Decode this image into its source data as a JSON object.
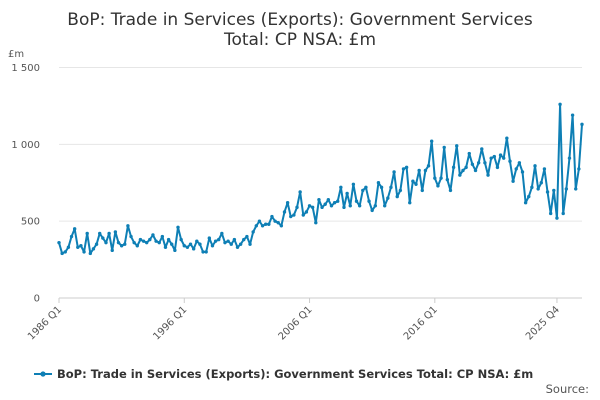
{
  "page": {
    "title_line1": "BoP: Trade in Services (Exports): Government Services",
    "title_line2": "Total: CP NSA: £m",
    "source_label": "Source:"
  },
  "colors": {
    "series": "#1f77b4",
    "series_line": "#0e7fb5",
    "grid": "#e6e6e6"
  },
  "chart_data": {
    "type": "line",
    "title": "BoP: Trade in Services (Exports): Government Services Total: CP NSA: £m",
    "ylabel": "£m",
    "ylim": [
      0,
      1500
    ],
    "yticks": [
      0,
      500,
      1000,
      1500
    ],
    "ytick_labels": [
      "0",
      "500",
      "1 000",
      "1 500"
    ],
    "x_start": "1986 Q1",
    "x_end": "2025 Q4",
    "xtick_labels": [
      "1986 Q1",
      "1996 Q1",
      "2006 Q1",
      "2016 Q1",
      "2025 Q4"
    ],
    "xtick_indices": [
      0,
      40,
      80,
      120,
      159
    ],
    "legend": "bottom",
    "grid": true,
    "series": [
      {
        "name": "BoP: Trade in Services (Exports): Government Services Total: CP NSA: £m",
        "values": [
          360,
          290,
          300,
          330,
          400,
          450,
          330,
          340,
          300,
          420,
          290,
          320,
          350,
          420,
          390,
          360,
          420,
          310,
          430,
          360,
          340,
          350,
          470,
          400,
          360,
          340,
          380,
          370,
          360,
          380,
          410,
          370,
          360,
          400,
          330,
          380,
          350,
          310,
          460,
          380,
          340,
          330,
          350,
          320,
          370,
          350,
          300,
          300,
          390,
          340,
          370,
          380,
          420,
          360,
          370,
          350,
          380,
          330,
          350,
          380,
          400,
          350,
          430,
          470,
          500,
          470,
          480,
          480,
          530,
          500,
          490,
          470,
          560,
          620,
          530,
          540,
          590,
          690,
          540,
          560,
          600,
          590,
          490,
          640,
          590,
          610,
          640,
          600,
          620,
          630,
          720,
          590,
          680,
          600,
          740,
          630,
          600,
          700,
          720,
          630,
          570,
          600,
          750,
          720,
          600,
          650,
          720,
          820,
          660,
          700,
          840,
          850,
          620,
          760,
          740,
          830,
          700,
          830,
          860,
          1020,
          780,
          730,
          780,
          980,
          770,
          700,
          850,
          990,
          800,
          830,
          850,
          940,
          870,
          830,
          880,
          970,
          880,
          800,
          910,
          920,
          850,
          930,
          910,
          1040,
          890,
          760,
          840,
          880,
          820,
          620,
          660,
          720,
          860,
          710,
          750,
          840,
          690,
          550,
          700,
          520,
          1260,
          550,
          710,
          910,
          1190,
          710,
          840,
          1130
        ]
      }
    ]
  }
}
